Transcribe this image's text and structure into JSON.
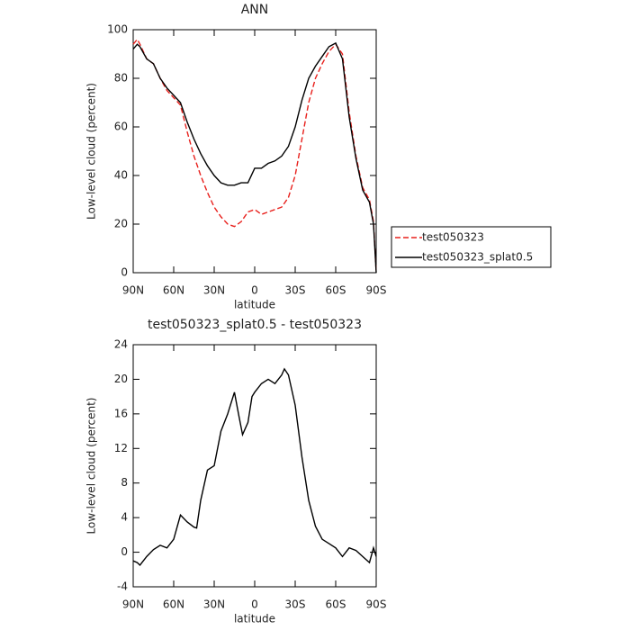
{
  "chart_data": [
    {
      "type": "line",
      "title": "ANN",
      "xlabel": "latitude",
      "ylabel": "Low-level cloud (percent)",
      "x": [
        90,
        87,
        85,
        80,
        75,
        70,
        65,
        60,
        55,
        50,
        45,
        40,
        35,
        30,
        25,
        20,
        15,
        10,
        5,
        0,
        -5,
        -10,
        -15,
        -20,
        -25,
        -30,
        -35,
        -40,
        -45,
        -50,
        -55,
        -60,
        -65,
        -70,
        -75,
        -80,
        -85,
        -88,
        -90
      ],
      "series": [
        {
          "name": "test050323",
          "color": "#e8201c",
          "style": "dashed",
          "values": [
            94,
            96,
            94,
            88,
            86,
            80,
            75,
            72,
            69,
            58,
            48,
            40,
            33,
            27,
            23,
            20,
            19,
            21,
            25,
            26,
            24,
            25,
            26,
            27,
            31,
            40,
            55,
            70,
            80,
            86,
            91,
            94,
            90,
            66,
            48,
            35,
            30,
            21,
            0
          ]
        },
        {
          "name": "test050323_splat0.5",
          "color": "#000000",
          "style": "solid",
          "values": [
            92,
            94,
            93,
            88,
            86,
            80,
            76,
            73,
            70,
            62,
            55,
            49,
            44,
            40,
            37,
            36,
            36,
            37,
            37,
            43,
            43,
            45,
            46,
            48,
            52,
            60,
            71,
            80,
            85,
            89,
            93,
            94.5,
            88,
            64,
            47,
            34,
            29,
            20,
            0
          ]
        }
      ],
      "xlim": [
        90,
        -90
      ],
      "xticks": [
        {
          "value": 90,
          "label": "90N"
        },
        {
          "value": 60,
          "label": "60N"
        },
        {
          "value": 30,
          "label": "30N"
        },
        0,
        {
          "value": -30,
          "label": "30S"
        },
        {
          "value": -60,
          "label": "60S"
        },
        {
          "value": -90,
          "label": "90S"
        }
      ],
      "ylim": [
        0,
        100
      ],
      "yticks": [
        0,
        20,
        40,
        60,
        80,
        100
      ],
      "legend": true
    },
    {
      "type": "line",
      "title": "test050323_splat0.5 - test050323",
      "xlabel": "latitude",
      "ylabel": "Low-level cloud (percent)",
      "x": [
        90,
        87,
        85,
        80,
        75,
        70,
        65,
        60,
        55,
        50,
        45,
        43,
        40,
        35,
        30,
        25,
        20,
        15,
        12,
        9,
        5,
        2,
        0,
        -5,
        -10,
        -15,
        -20,
        -22,
        -25,
        -30,
        -35,
        -40,
        -45,
        -50,
        -55,
        -60,
        -65,
        -70,
        -75,
        -80,
        -85,
        -88,
        -90
      ],
      "values": [
        -1,
        -1.2,
        -1.5,
        -0.5,
        0.3,
        0.8,
        0.5,
        1.5,
        4.3,
        3.5,
        2.9,
        2.8,
        6,
        9.5,
        10,
        14,
        16,
        18.5,
        16,
        13.6,
        15,
        18,
        18.5,
        19.5,
        20,
        19.5,
        20.5,
        21.2,
        20.5,
        17,
        11,
        6,
        3,
        1.5,
        1,
        0.5,
        -0.5,
        0.5,
        0.2,
        -0.5,
        -1.2,
        0.5,
        -0.5
      ],
      "color": "#000000",
      "style": "solid",
      "xlim": [
        90,
        -90
      ],
      "xticks": [
        {
          "value": 90,
          "label": "90N"
        },
        {
          "value": 60,
          "label": "60N"
        },
        {
          "value": 30,
          "label": "30N"
        },
        0,
        {
          "value": -30,
          "label": "30S"
        },
        {
          "value": -60,
          "label": "60S"
        },
        {
          "value": -90,
          "label": "90S"
        }
      ],
      "ylim": [
        -4,
        24
      ],
      "yticks": [
        -4,
        0,
        4,
        8,
        12,
        16,
        20,
        24
      ]
    }
  ]
}
